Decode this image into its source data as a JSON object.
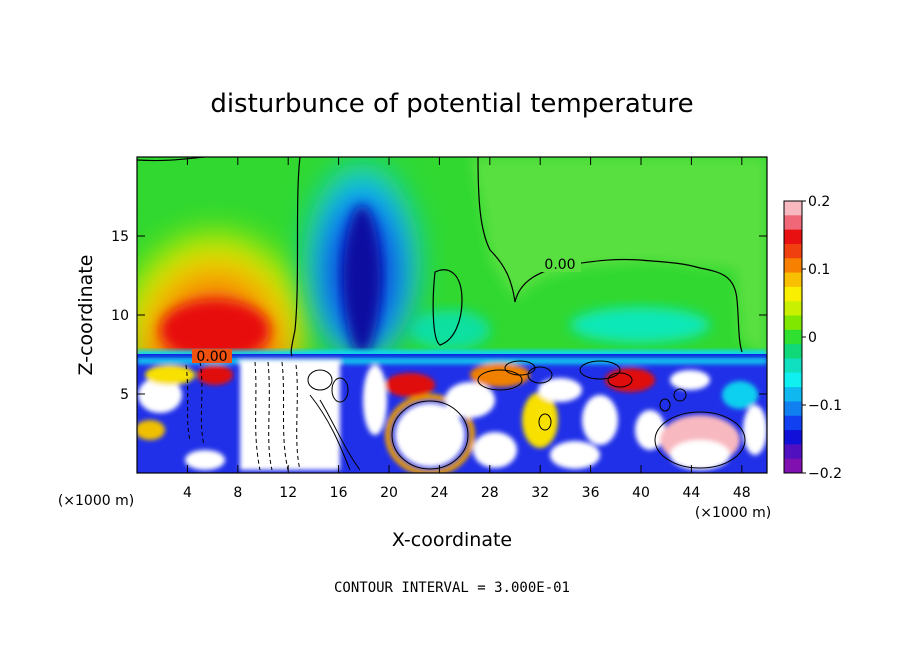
{
  "chart_data": {
    "type": "heatmap",
    "title": "disturbunce of potential temperature",
    "xlabel": "X-coordinate",
    "ylabel": "Z-coordinate",
    "x_unit_left": "(×1000 m)",
    "x_unit_right": "(×1000 m)",
    "xlim": [
      0,
      50
    ],
    "ylim": [
      0,
      20
    ],
    "x_ticks": [
      4,
      8,
      12,
      16,
      20,
      24,
      28,
      32,
      36,
      40,
      44,
      48
    ],
    "y_ticks": [
      5,
      10,
      15
    ],
    "colorbar": {
      "range": [
        -0.2,
        0.2
      ],
      "tick_values": [
        0.2,
        0.1,
        0,
        -0.1,
        -0.2
      ],
      "tick_labels": [
        "0.2",
        "0.1",
        "0",
        "−0.1",
        "−0.2"
      ],
      "colors": [
        "#f8b8c0",
        "#f06878",
        "#e81010",
        "#f04010",
        "#f88000",
        "#f8c000",
        "#f8f000",
        "#c8f000",
        "#80e800",
        "#30e030",
        "#10d878",
        "#10e0c0",
        "#10f0f0",
        "#10b8f0",
        "#1080f0",
        "#1040f0",
        "#1010d8",
        "#5010c0",
        "#8010b0"
      ]
    },
    "contour_labels": [
      "0.00",
      "0.00"
    ],
    "contour_interval_text": "CONTOUR INTERVAL = 3.000E-01",
    "features": [
      {
        "name": "warm anomaly",
        "x": 6,
        "z": 10,
        "value": 0.17
      },
      {
        "name": "cold column",
        "x": 18,
        "z": 13,
        "value": -0.18
      },
      {
        "name": "turbulent boundary layer",
        "z_top": 7.5
      }
    ]
  }
}
